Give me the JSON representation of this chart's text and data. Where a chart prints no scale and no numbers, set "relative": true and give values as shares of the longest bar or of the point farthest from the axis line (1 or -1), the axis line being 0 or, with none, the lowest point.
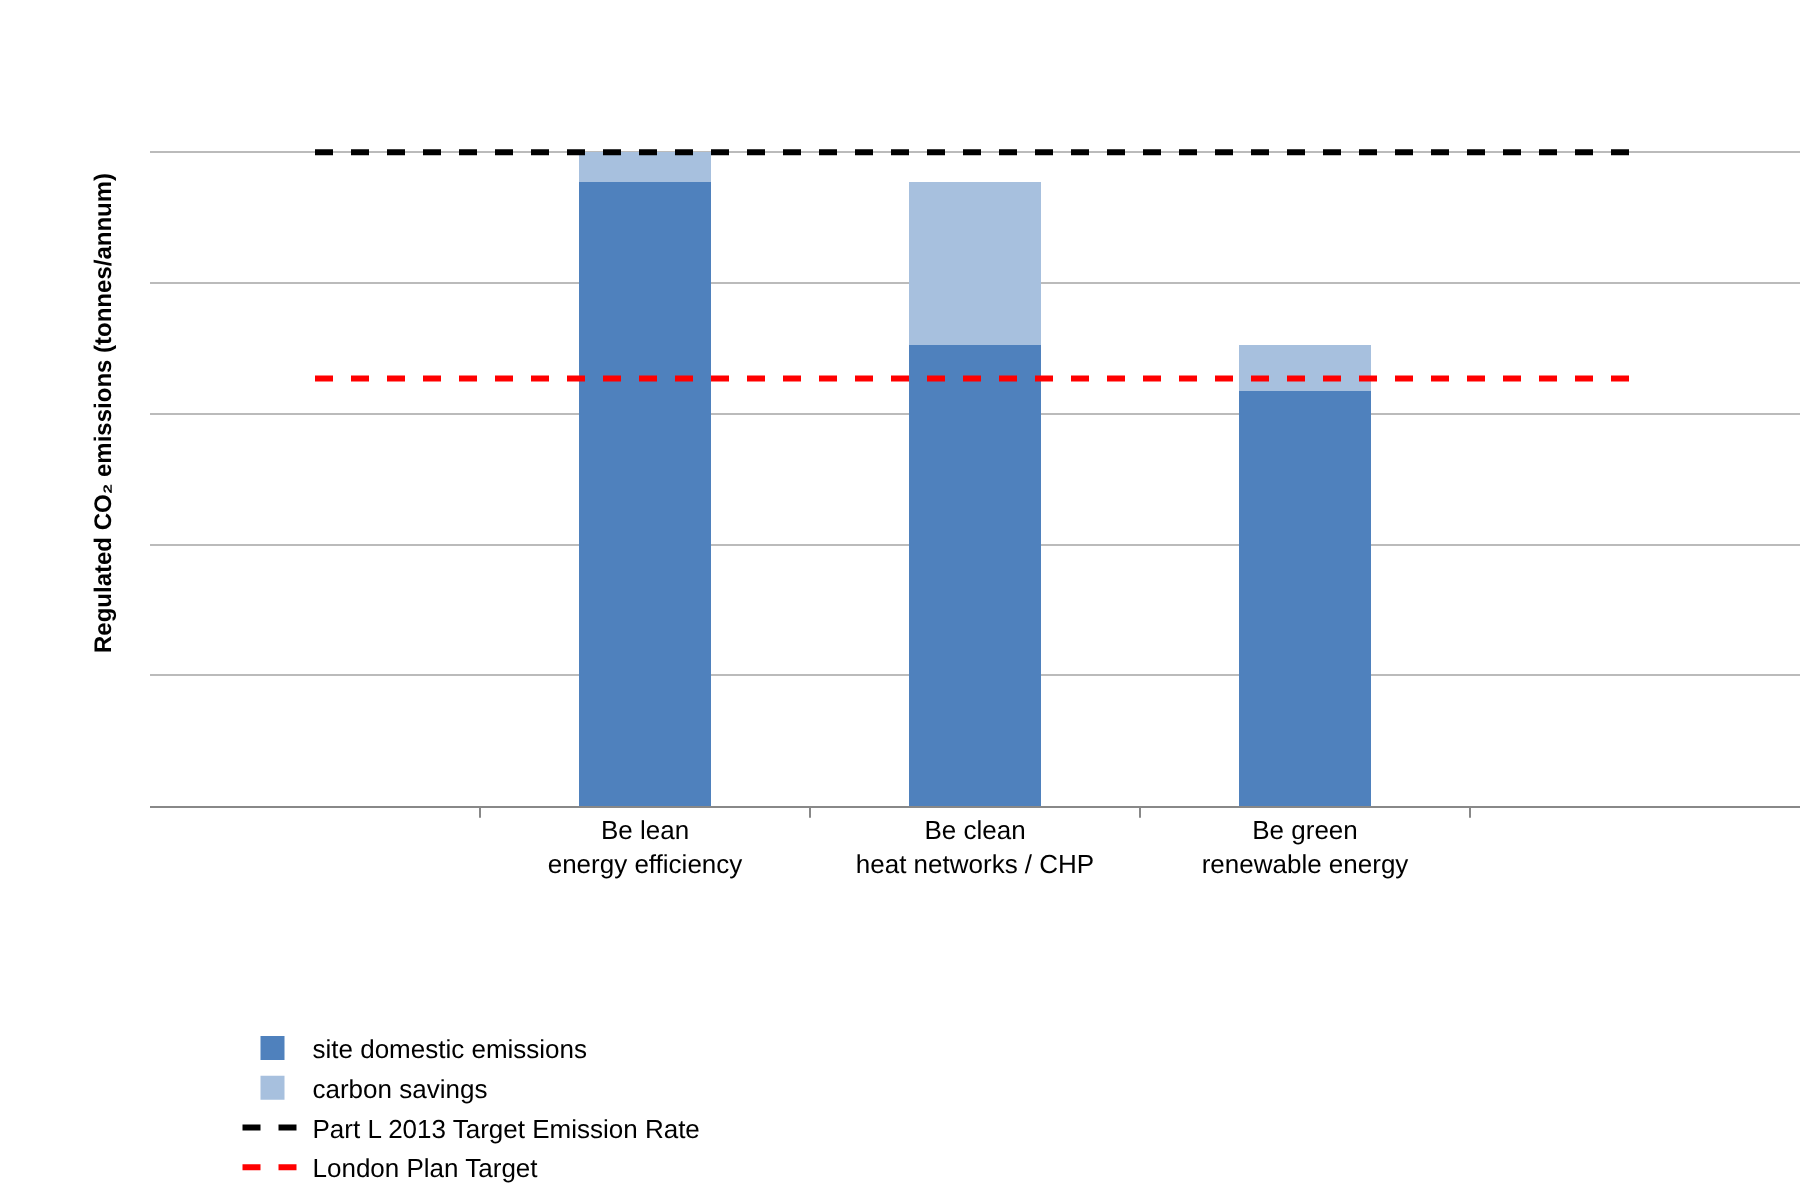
{
  "chart_data": {
    "type": "bar",
    "stacked": true,
    "relative": true,
    "ylabel": "Regulated CO₂ emissions (tonnes/annum)",
    "categories": [
      null,
      "Be lean\nenergy efficiency",
      "Be clean\nheat networks / CHP",
      "Be green\nrenewable energy",
      null
    ],
    "series": [
      {
        "name": "site domestic emissions",
        "color": "#4f81bd",
        "values": [
          null,
          0.954,
          0.705,
          0.635,
          null
        ]
      },
      {
        "name": "carbon savings",
        "color": "#a7c0de",
        "values": [
          null,
          0.046,
          0.249,
          0.07,
          null
        ]
      }
    ],
    "ref_lines": [
      {
        "axis": "y",
        "value": 1.0,
        "label": "Part L 2013 Target Emission Rate",
        "color": "#000000",
        "line_style": "dashed"
      },
      {
        "axis": "y",
        "value": 0.654,
        "label": "London Plan Target",
        "color": "#ff0000",
        "line_style": "dashed"
      }
    ],
    "grid": "y",
    "legend": "bottom"
  }
}
